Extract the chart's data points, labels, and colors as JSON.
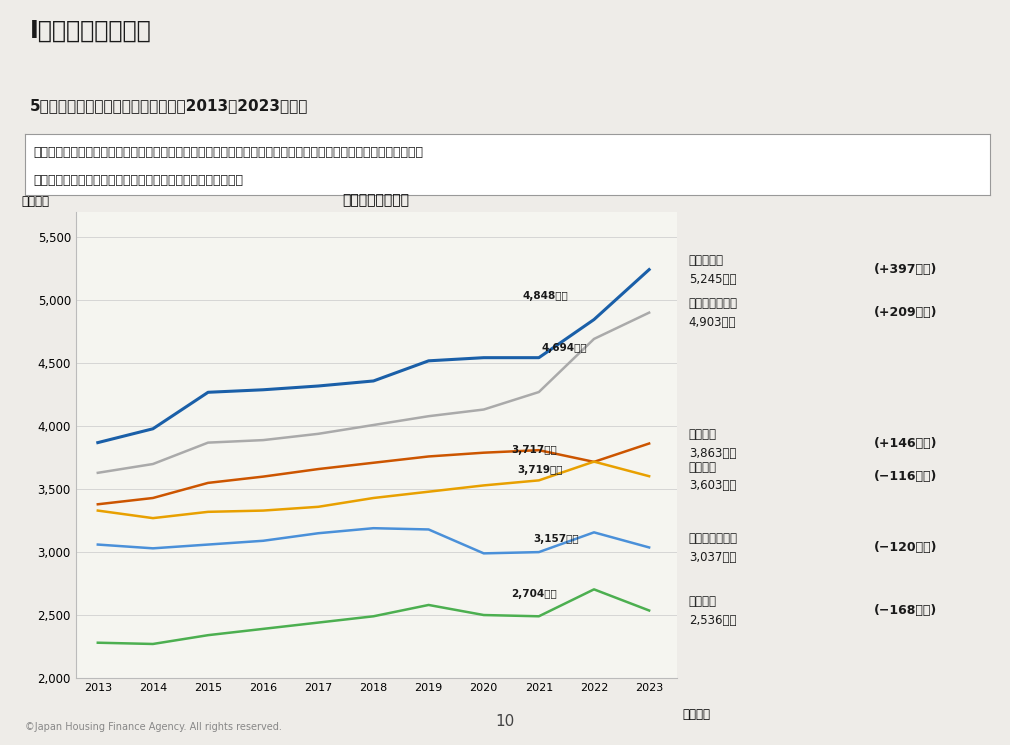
{
  "years": [
    2013,
    2014,
    2015,
    2016,
    2017,
    2018,
    2019,
    2020,
    2021,
    2022,
    2023
  ],
  "mansion": [
    3870,
    3980,
    4270,
    4290,
    4320,
    4360,
    4520,
    4545,
    4545,
    4848,
    5245
  ],
  "tochi_chuko": [
    3630,
    3700,
    3870,
    3890,
    3940,
    4010,
    4080,
    4133,
    4272,
    4694,
    4903
  ],
  "chuko_jutaku": [
    3380,
    3430,
    3550,
    3600,
    3660,
    3710,
    3760,
    3790,
    3810,
    3717,
    3863
  ],
  "tate_uri": [
    3330,
    3270,
    3320,
    3330,
    3360,
    3430,
    3480,
    3530,
    3570,
    3719,
    3603
  ],
  "chuko_mansion": [
    3060,
    3030,
    3060,
    3090,
    3150,
    3190,
    3180,
    2990,
    3000,
    3157,
    3037
  ],
  "chuko_kodachi": [
    2280,
    2270,
    2340,
    2390,
    2440,
    2490,
    2580,
    2500,
    2490,
    2704,
    2536
  ],
  "title_main": "I　調査結果の概要",
  "title_sub": "5　所要資金（融資区分別）の推移（2013～2023年度）",
  "bullet_line1": "・所要資金を融資区分別に見ると、マンション、土地付き注文住宅、注文住宅で前年度から増加した一方、　建売住",
  "bullet_line2": "　宅、中古マンション、中古戸建で前年度から減少している。",
  "chart_title": "所要資金（全国）",
  "ylabel": "（万円）",
  "xlabel": "（年度）",
  "ylim": [
    2000,
    5700
  ],
  "yticks": [
    2000,
    2500,
    3000,
    3500,
    4000,
    4500,
    5000,
    5500
  ],
  "ann2022": [
    "4,848万円",
    "4,694万円",
    "3,717万円",
    "3,719万円",
    "3,157万円",
    "2,704万円"
  ],
  "ann2022_y": [
    4848,
    4694,
    3717,
    3719,
    3157,
    2704
  ],
  "legend_labels": [
    "マンション",
    "土地付注文住宅",
    "注文住宅",
    "建売住宅",
    "中古マンション",
    "中古戸建"
  ],
  "legend_values_2023": [
    "5,245万円",
    "4,903万円",
    "3,863万円",
    "3,603万円",
    "3,037万円",
    "2,536万円"
  ],
  "legend_changes": [
    "(+397万円)",
    "(+209万円)",
    "(+146万円)",
    "(−116万円)",
    "(−120万円)",
    "(−168万円)"
  ],
  "line_colors": [
    "#1a5fa8",
    "#aaaaaa",
    "#cc5500",
    "#e8a000",
    "#4a90d9",
    "#4caf50"
  ],
  "background_color": "#f5f5f0",
  "page_background": "#eeece8",
  "header_bg": "#f8f8f6",
  "bullet_bg": "#ffffff",
  "green_line_color": "#3a6b3a",
  "footer_text": "©Japan Housing Finance Agency. All rights reserved.",
  "page_num": "10"
}
